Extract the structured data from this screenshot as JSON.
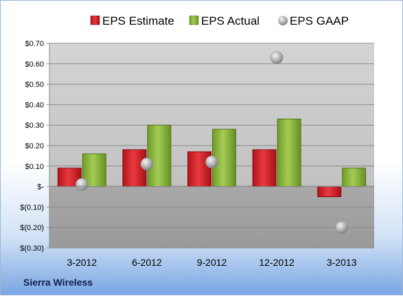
{
  "company": "Sierra Wireless",
  "colors": {
    "estimate": "#d9262b",
    "actual": "#8fb93a",
    "gaap": "#b4b4b4"
  },
  "chart_data": {
    "type": "bar",
    "categories": [
      "3-2012",
      "6-2012",
      "9-2012",
      "12-2012",
      "3-2013"
    ],
    "series": [
      {
        "name": "EPS Estimate",
        "marker": "bar",
        "values": [
          0.09,
          0.18,
          0.17,
          0.18,
          -0.05
        ]
      },
      {
        "name": "EPS Actual",
        "marker": "bar",
        "values": [
          0.16,
          0.3,
          0.28,
          0.33,
          0.09
        ]
      },
      {
        "name": "EPS GAAP",
        "marker": "circle",
        "values": [
          0.01,
          0.11,
          0.12,
          0.63,
          -0.2
        ]
      }
    ],
    "y_ticks": [
      {
        "value": 0.7,
        "label": "$0.70"
      },
      {
        "value": 0.6,
        "label": "$0.60"
      },
      {
        "value": 0.5,
        "label": "$0.50"
      },
      {
        "value": 0.4,
        "label": "$0.40"
      },
      {
        "value": 0.3,
        "label": "$0.30"
      },
      {
        "value": 0.2,
        "label": "$0.20"
      },
      {
        "value": 0.1,
        "label": "$0.10"
      },
      {
        "value": 0.0,
        "label": "$-"
      },
      {
        "value": -0.1,
        "label": "$(0.10)"
      },
      {
        "value": -0.2,
        "label": "$(0.20)"
      },
      {
        "value": -0.3,
        "label": "$(0.30)"
      }
    ],
    "ylim": [
      -0.3,
      0.7
    ],
    "grid": true,
    "legend": "top-center"
  }
}
